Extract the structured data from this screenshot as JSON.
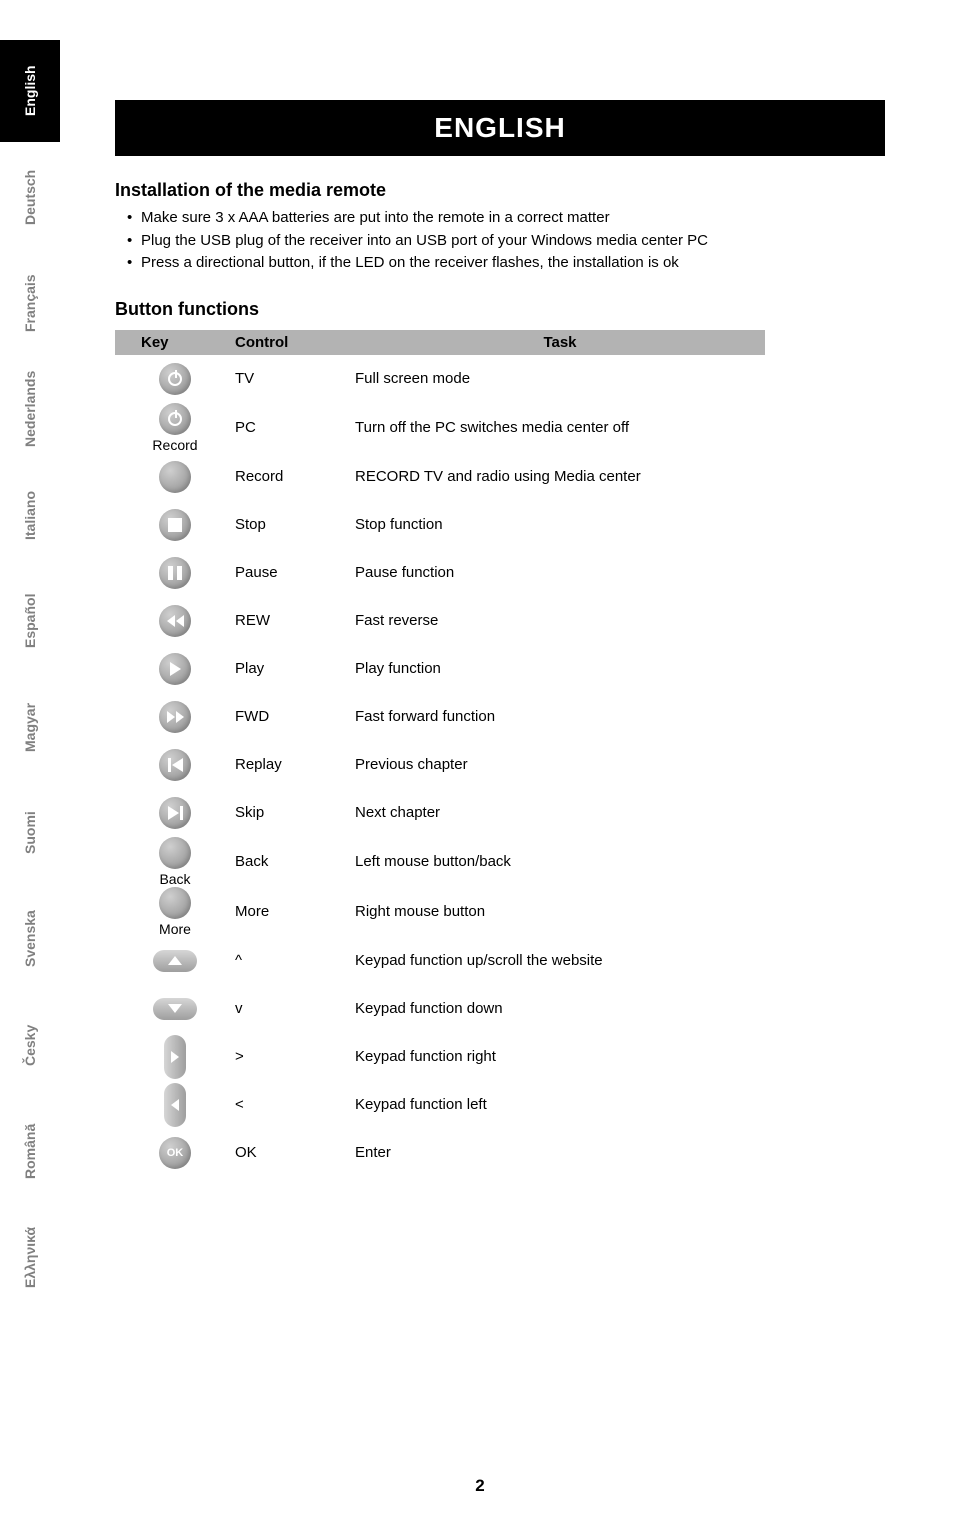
{
  "page_number": "2",
  "colors": {
    "tab_active_bg": "#000000",
    "tab_active_fg": "#ffffff",
    "tab_inactive_fg": "#808080",
    "title_bar_bg": "#000000",
    "title_bar_fg": "#ffffff",
    "table_header_bg": "#b3b3b3",
    "body_text": "#000000"
  },
  "tabs": [
    {
      "label": "English",
      "active": true
    },
    {
      "label": "Deutsch",
      "active": false
    },
    {
      "label": "Français",
      "active": false
    },
    {
      "label": "Nederlands",
      "active": false
    },
    {
      "label": "Italiano",
      "active": false
    },
    {
      "label": "Español",
      "active": false
    },
    {
      "label": "Magyar",
      "active": false
    },
    {
      "label": "Suomi",
      "active": false
    },
    {
      "label": "Svenska",
      "active": false
    },
    {
      "label": "Česky",
      "active": false
    },
    {
      "label": "Română",
      "active": false
    },
    {
      "label": "Ελληνικά",
      "active": false
    }
  ],
  "title_bar": "ENGLISH",
  "section_install": {
    "heading": "Installation of the media remote",
    "bullets": [
      "Make sure 3 x AAA batteries are put into the remote in a correct matter",
      "Plug the USB plug of the receiver into an USB port of your Windows media center PC",
      "Press a directional button, if the LED on the receiver flashes, the installation is ok"
    ]
  },
  "section_buttons": {
    "heading": "Button functions",
    "columns": {
      "key": "Key",
      "control": "Control",
      "task": "Task"
    },
    "rows": [
      {
        "icon": "power",
        "key_label": "",
        "control": "TV",
        "task": "Full screen mode"
      },
      {
        "icon": "power",
        "key_label": "Record",
        "control": "PC",
        "task": "Turn off the PC switches media center off"
      },
      {
        "icon": "plain",
        "key_label": "",
        "control": "Record",
        "task": "RECORD TV and radio using Media center"
      },
      {
        "icon": "stop",
        "key_label": "",
        "control": "Stop",
        "task": "Stop function"
      },
      {
        "icon": "pause",
        "key_label": "",
        "control": "Pause",
        "task": "Pause function"
      },
      {
        "icon": "rew",
        "key_label": "",
        "control": "REW",
        "task": "Fast reverse"
      },
      {
        "icon": "play",
        "key_label": "",
        "control": "Play",
        "task": "Play function"
      },
      {
        "icon": "fwd",
        "key_label": "",
        "control": "FWD",
        "task": "Fast forward function"
      },
      {
        "icon": "replay",
        "key_label": "",
        "control": "Replay",
        "task": "Previous chapter"
      },
      {
        "icon": "skip",
        "key_label": "",
        "control": "Skip",
        "task": "Next chapter"
      },
      {
        "icon": "plain",
        "key_label": "Back",
        "control": "Back",
        "task": "Left mouse button/back"
      },
      {
        "icon": "plain",
        "key_label": "More",
        "control": "More",
        "task": "Right mouse button"
      },
      {
        "icon": "pill-up",
        "key_label": "",
        "control": "^",
        "task": "Keypad function up/scroll the website"
      },
      {
        "icon": "pill-down",
        "key_label": "",
        "control": "v",
        "task": "Keypad function down"
      },
      {
        "icon": "pill-right",
        "key_label": "",
        "control": ">",
        "task": "Keypad function right"
      },
      {
        "icon": "pill-left",
        "key_label": "",
        "control": "<",
        "task": "Keypad function left"
      },
      {
        "icon": "ok",
        "key_label": "",
        "control": "OK",
        "task": "Enter"
      }
    ]
  }
}
